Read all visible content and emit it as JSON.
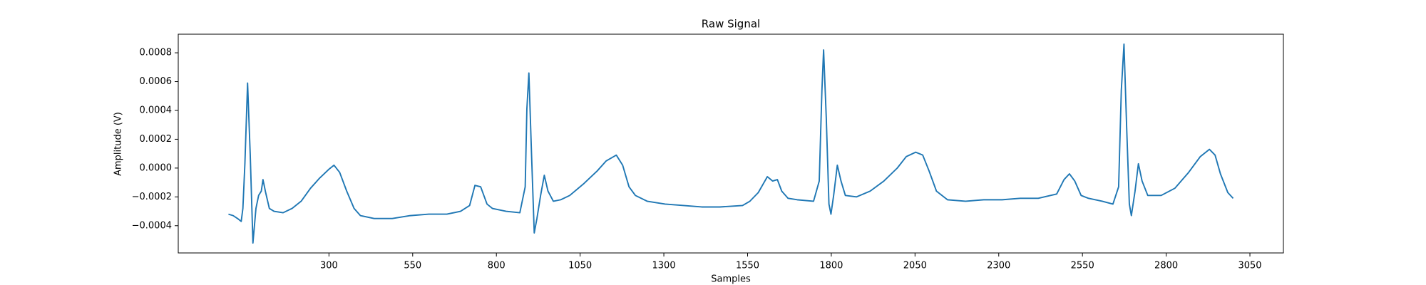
{
  "chart_data": {
    "type": "line",
    "title": "Raw Signal",
    "x_label": "Samples",
    "y_label": "Amplitude (V)",
    "color": "#1f77b4",
    "x": [
      0,
      14,
      27,
      38,
      43,
      49,
      57,
      65,
      73,
      82,
      90,
      98,
      103,
      111,
      122,
      136,
      163,
      190,
      217,
      245,
      272,
      299,
      315,
      332,
      353,
      375,
      394,
      435,
      489,
      543,
      598,
      652,
      693,
      720,
      736,
      753,
      772,
      788,
      829,
      870,
      886,
      891,
      897,
      905,
      913,
      921,
      932,
      943,
      954,
      970,
      992,
      1019,
      1060,
      1101,
      1128,
      1158,
      1177,
      1196,
      1215,
      1250,
      1304,
      1359,
      1413,
      1467,
      1535,
      1557,
      1582,
      1609,
      1625,
      1639,
      1652,
      1671,
      1698,
      1747,
      1764,
      1772,
      1777,
      1785,
      1793,
      1799,
      1807,
      1818,
      1829,
      1842,
      1875,
      1916,
      1957,
      1997,
      2024,
      2052,
      2073,
      2092,
      2114,
      2147,
      2201,
      2255,
      2310,
      2364,
      2418,
      2473,
      2495,
      2511,
      2527,
      2546,
      2568,
      2609,
      2641,
      2658,
      2666,
      2674,
      2682,
      2690,
      2696,
      2707,
      2717,
      2728,
      2745,
      2785,
      2826,
      2867,
      2902,
      2929,
      2946,
      2962,
      2984,
      3000
    ],
    "values": [
      -0.00032,
      -0.00033,
      -0.00035,
      -0.00037,
      -0.00028,
      3e-05,
      0.00059,
      9e-05,
      -0.00052,
      -0.00028,
      -0.00019,
      -0.00016,
      -8e-05,
      -0.00017,
      -0.00028,
      -0.0003,
      -0.00031,
      -0.00028,
      -0.00023,
      -0.00014,
      -7e-05,
      -1e-05,
      2e-05,
      -3e-05,
      -0.00016,
      -0.00028,
      -0.00033,
      -0.00035,
      -0.00035,
      -0.00033,
      -0.00032,
      -0.00032,
      -0.0003,
      -0.00026,
      -0.00012,
      -0.00013,
      -0.00025,
      -0.00028,
      -0.0003,
      -0.00031,
      -0.00013,
      0.00041,
      0.00066,
      9e-05,
      -0.00045,
      -0.00035,
      -0.00019,
      -5e-05,
      -0.00016,
      -0.00023,
      -0.00022,
      -0.00019,
      -0.00011,
      -2e-05,
      5e-05,
      9e-05,
      2e-05,
      -0.00013,
      -0.00019,
      -0.00023,
      -0.00025,
      -0.00026,
      -0.00027,
      -0.00027,
      -0.00026,
      -0.00023,
      -0.00017,
      -6e-05,
      -9e-05,
      -8e-05,
      -0.00016,
      -0.00021,
      -0.00022,
      -0.00023,
      -9e-05,
      0.00054,
      0.00082,
      0.00035,
      -0.00025,
      -0.00032,
      -0.00019,
      2e-05,
      -9e-05,
      -0.00019,
      -0.0002,
      -0.00016,
      -9e-05,
      0,
      8e-05,
      0.00011,
      9e-05,
      -2e-05,
      -0.00016,
      -0.00022,
      -0.00023,
      -0.00022,
      -0.00022,
      -0.00021,
      -0.00021,
      -0.00018,
      -8e-05,
      -4e-05,
      -9e-05,
      -0.00019,
      -0.00021,
      -0.00023,
      -0.00025,
      -0.00013,
      0.00054,
      0.00086,
      0.00028,
      -0.00025,
      -0.00033,
      -0.00016,
      3e-05,
      -9e-05,
      -0.00019,
      -0.00019,
      -0.00014,
      -3e-05,
      8e-05,
      0.00013,
      9e-05,
      -4e-05,
      -0.00017,
      -0.00021
    ],
    "xlim": [
      -150,
      3150
    ],
    "ylim": [
      -0.000589,
      0.000929
    ],
    "xticks": [
      300,
      550,
      800,
      1050,
      1300,
      1550,
      1800,
      2050,
      2300,
      2550,
      2800,
      3050
    ],
    "yticks": [
      {
        "value": -0.0004,
        "label": "−0.0004"
      },
      {
        "value": -0.0002,
        "label": "−0.0002"
      },
      {
        "value": 0,
        "label": "0.0000"
      },
      0.0002,
      0.0004,
      0.0006,
      0.0008
    ],
    "grid": false
  }
}
